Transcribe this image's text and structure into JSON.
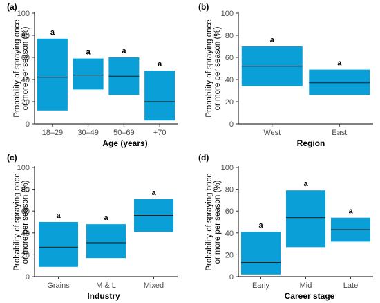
{
  "box_color": "#0a9fd6",
  "median_color": "#1a1a1a",
  "chart_data": [
    {
      "type": "bar",
      "panel": "(a)",
      "ylabel_lines": [
        "Probability of spraying once",
        "or more per season  (%)"
      ],
      "xlabel": "Age (years)",
      "ylim": [
        0,
        100
      ],
      "yticks": [
        0,
        20,
        40,
        60,
        80,
        100
      ],
      "categories": [
        "18–29",
        "30–49",
        "50–69",
        "+70"
      ],
      "series": [
        {
          "low": [
            12,
            31,
            26,
            3
          ],
          "high": [
            77,
            59,
            60,
            48
          ],
          "median": [
            42,
            44,
            43,
            20
          ]
        }
      ],
      "labels": [
        "a",
        "a",
        "a",
        "a"
      ]
    },
    {
      "type": "bar",
      "panel": "(b)",
      "ylabel_lines": [
        "Probability of spraying once",
        "or more per season  (%)"
      ],
      "xlabel": "Region",
      "ylim": [
        0,
        100
      ],
      "yticks": [
        0,
        20,
        40,
        60,
        80,
        100
      ],
      "categories": [
        "West",
        "East"
      ],
      "series": [
        {
          "low": [
            34,
            26
          ],
          "high": [
            70,
            49
          ],
          "median": [
            52,
            37
          ]
        }
      ],
      "labels": [
        "a",
        "a"
      ]
    },
    {
      "type": "bar",
      "panel": "(c)",
      "ylabel_lines": [
        "Probability of spraying once",
        "or more per season  (%)"
      ],
      "xlabel": "Industry",
      "ylim": [
        0,
        100
      ],
      "yticks": [
        0,
        20,
        40,
        60,
        80,
        100
      ],
      "categories": [
        "Grains",
        "M & L",
        "Mixed"
      ],
      "series": [
        {
          "low": [
            9,
            17,
            41
          ],
          "high": [
            50,
            48,
            71
          ],
          "median": [
            27,
            31,
            56
          ]
        }
      ],
      "labels": [
        "a",
        "a",
        "a"
      ]
    },
    {
      "type": "bar",
      "panel": "(d)",
      "ylabel_lines": [
        "Probability of spraying once",
        "or more per season  (%)"
      ],
      "xlabel": "Career stage",
      "ylim": [
        0,
        100
      ],
      "yticks": [
        0,
        20,
        40,
        60,
        80,
        100
      ],
      "categories": [
        "Early",
        "Mid",
        "Late"
      ],
      "series": [
        {
          "low": [
            2,
            27,
            32
          ],
          "high": [
            41,
            79,
            54
          ],
          "median": [
            13,
            54,
            43
          ]
        }
      ],
      "labels": [
        "a",
        "a",
        "a"
      ]
    }
  ]
}
